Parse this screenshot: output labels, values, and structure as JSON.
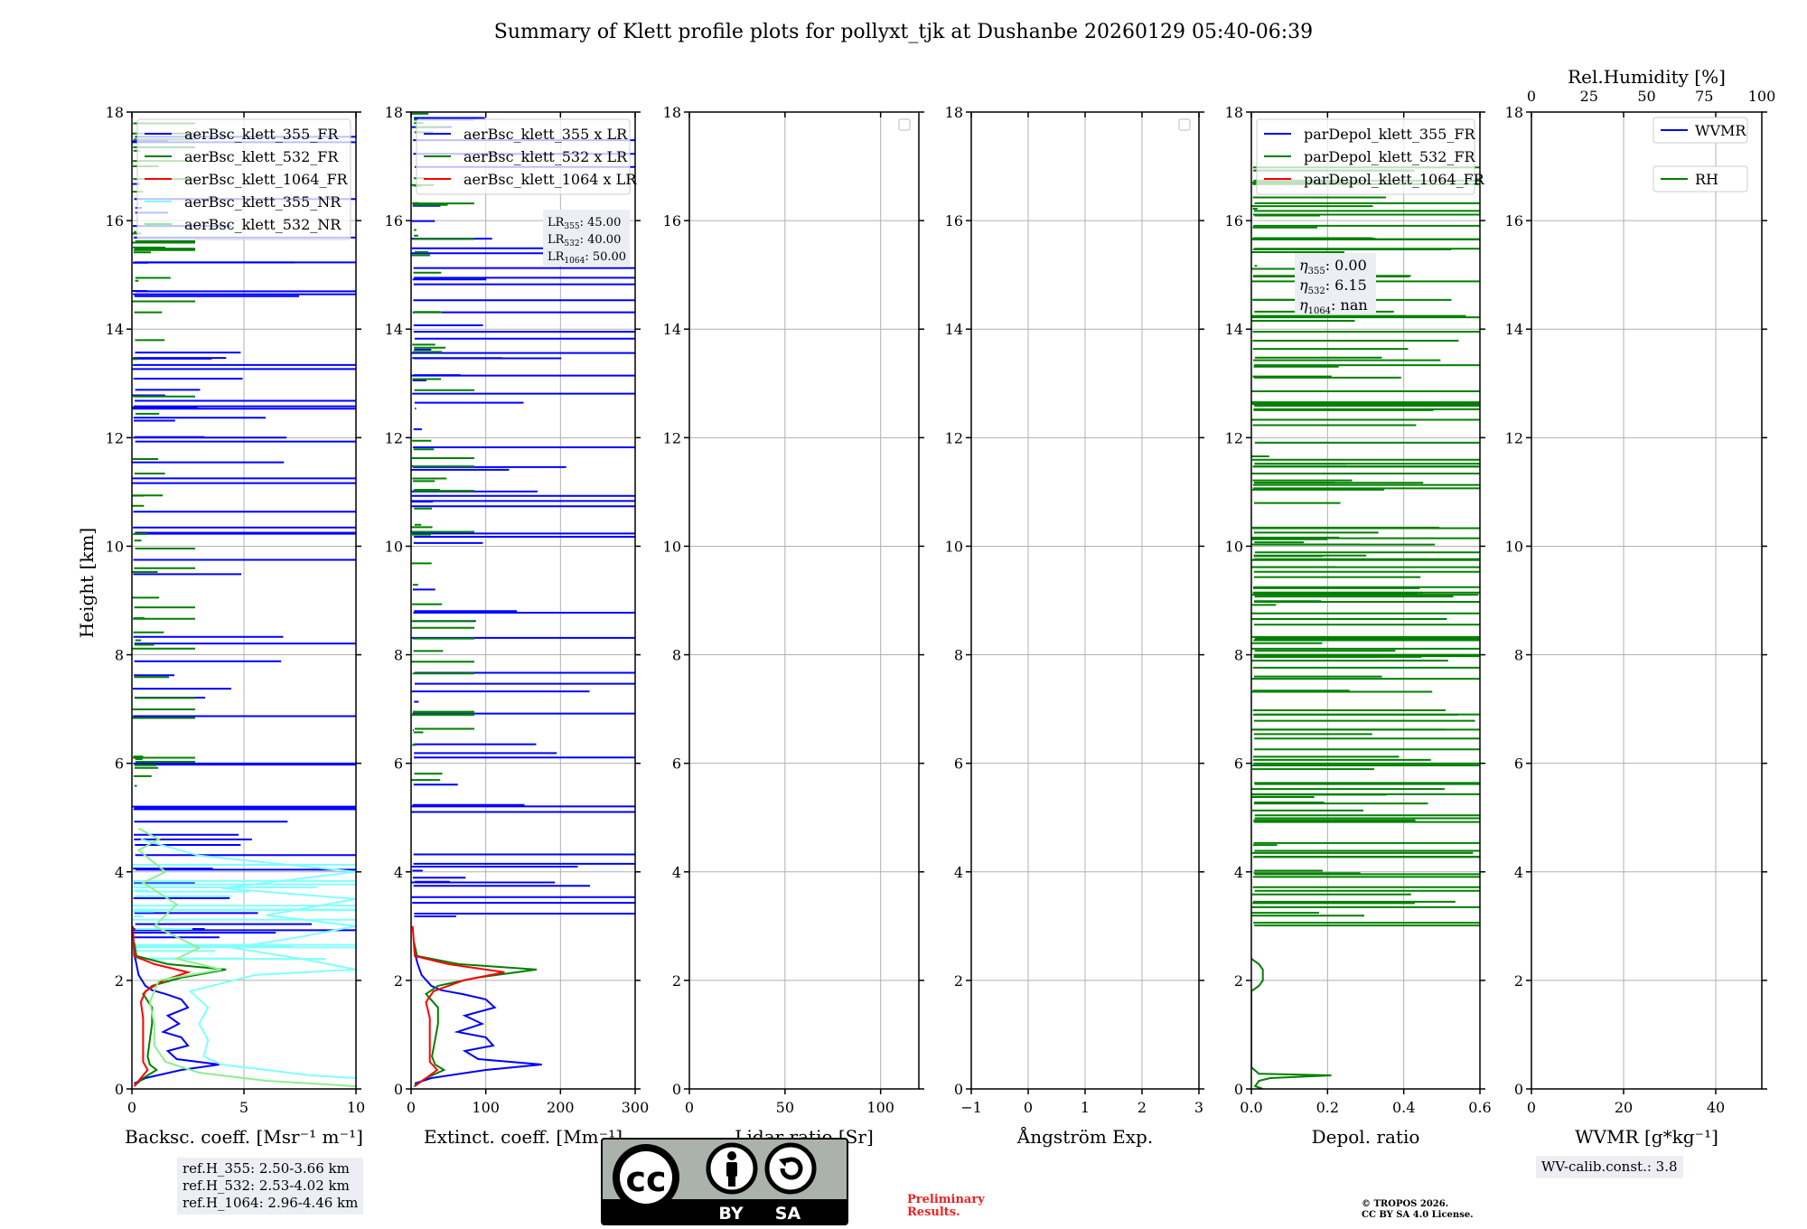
{
  "chart_data": {
    "title": "Summary of Klett profile plots for pollyxt_tjk at Dushanbe 20260129 05:40-06:39",
    "type": "line",
    "ylabel": "Height [km]",
    "ylim": [
      0,
      18
    ],
    "yticks": [
      0,
      2,
      4,
      6,
      8,
      10,
      12,
      14,
      16,
      18
    ],
    "panels": [
      {
        "key": "backscatter",
        "type": "line",
        "xlabel": "Backsc. coeff. [Msr⁻¹ m⁻¹]",
        "xlim": [
          0,
          10
        ],
        "xticks": [
          0,
          5,
          10
        ],
        "legend": [
          {
            "name": "aerBsc_klett_355_FR",
            "color": "#0000ff"
          },
          {
            "name": "aerBsc_klett_532_FR",
            "color": "#008000"
          },
          {
            "name": "aerBsc_klett_1064_FR",
            "color": "#ff0000"
          },
          {
            "name": "aerBsc_klett_355_NR",
            "color": "#80ffff"
          },
          {
            "name": "aerBsc_klett_532_NR",
            "color": "#90ee90"
          }
        ],
        "series": [
          {
            "name": "aerBsc_klett_355_FR",
            "color": "#0000ff",
            "points": [
              [
                0.1,
                0.1
              ],
              [
                0.6,
                0.2
              ],
              [
                2.2,
                0.35
              ],
              [
                3.9,
                0.45
              ],
              [
                2.0,
                0.55
              ],
              [
                1.6,
                0.7
              ],
              [
                2.5,
                0.8
              ],
              [
                2.2,
                0.95
              ],
              [
                1.4,
                1.05
              ],
              [
                2.1,
                1.2
              ],
              [
                1.6,
                1.35
              ],
              [
                2.5,
                1.5
              ],
              [
                2.2,
                1.65
              ],
              [
                1.5,
                1.75
              ],
              [
                0.9,
                1.82
              ],
              [
                0.6,
                1.9
              ],
              [
                0.3,
                2.1
              ],
              [
                0.2,
                2.3
              ],
              [
                0.1,
                2.5
              ]
            ]
          },
          {
            "name": "aerBsc_klett_532_FR",
            "color": "#008000",
            "points": [
              [
                0.1,
                0.05
              ],
              [
                0.5,
                0.2
              ],
              [
                1.1,
                0.35
              ],
              [
                0.8,
                0.45
              ],
              [
                0.7,
                0.6
              ],
              [
                0.8,
                0.9
              ],
              [
                0.9,
                1.2
              ],
              [
                0.9,
                1.5
              ],
              [
                0.5,
                1.75
              ],
              [
                0.9,
                1.9
              ],
              [
                2.2,
                2.05
              ],
              [
                4.2,
                2.2
              ],
              [
                1.6,
                2.3
              ],
              [
                0.2,
                2.45
              ],
              [
                0.1,
                2.7
              ]
            ]
          },
          {
            "name": "aerBsc_klett_1064_FR",
            "color": "#ff0000",
            "points": [
              [
                0.1,
                0.05
              ],
              [
                0.4,
                0.2
              ],
              [
                0.7,
                0.35
              ],
              [
                0.5,
                0.5
              ],
              [
                0.5,
                0.9
              ],
              [
                0.5,
                1.3
              ],
              [
                0.4,
                1.6
              ],
              [
                0.6,
                1.8
              ],
              [
                1.4,
                2.0
              ],
              [
                2.5,
                2.15
              ],
              [
                1.0,
                2.3
              ],
              [
                0.1,
                2.45
              ],
              [
                0.05,
                3.0
              ]
            ]
          },
          {
            "name": "aerBsc_klett_355_NR",
            "color": "#80ffff",
            "points": [
              [
                10,
                0.2
              ],
              [
                8.0,
                0.25
              ],
              [
                6.0,
                0.35
              ],
              [
                4.0,
                0.45
              ],
              [
                3.2,
                0.6
              ],
              [
                3.4,
                0.9
              ],
              [
                3.0,
                1.2
              ],
              [
                3.4,
                1.5
              ],
              [
                2.6,
                1.8
              ],
              [
                5.5,
                2.1
              ],
              [
                10,
                2.2
              ],
              [
                7.5,
                2.4
              ],
              [
                4.5,
                2.6
              ],
              [
                7.5,
                2.8
              ],
              [
                10,
                3.0
              ],
              [
                6.0,
                3.2
              ],
              [
                10,
                3.5
              ],
              [
                4.0,
                3.7
              ],
              [
                10,
                4.0
              ],
              [
                3.0,
                4.3
              ],
              [
                0.4,
                4.6
              ]
            ]
          },
          {
            "name": "aerBsc_klett_532_NR",
            "color": "#90ee90",
            "points": [
              [
                10,
                0.05
              ],
              [
                6.0,
                0.15
              ],
              [
                3.0,
                0.3
              ],
              [
                1.5,
                0.5
              ],
              [
                1.0,
                0.8
              ],
              [
                1.0,
                1.2
              ],
              [
                0.8,
                1.6
              ],
              [
                1.2,
                2.0
              ],
              [
                4.0,
                2.2
              ],
              [
                2.0,
                2.4
              ],
              [
                3.0,
                2.6
              ],
              [
                1.0,
                3.0
              ],
              [
                2.0,
                3.4
              ],
              [
                0.5,
                3.8
              ],
              [
                1.5,
                4.0
              ],
              [
                0.3,
                4.4
              ],
              [
                1.2,
                4.6
              ],
              [
                0.3,
                4.8
              ]
            ]
          }
        ],
        "info": [
          "ref.H_355: 2.50-3.66 km",
          "ref.H_532: 2.53-4.02 km",
          "ref.H_1064: 2.96-4.46 km"
        ]
      },
      {
        "key": "extinction",
        "type": "line",
        "xlabel": "Extinct. coeff. [Mm⁻¹]",
        "xlim": [
          0,
          300
        ],
        "xticks": [
          0,
          100,
          200,
          300
        ],
        "legend": [
          {
            "name": "aerBsc_klett_355 x LR",
            "color": "#0000ff"
          },
          {
            "name": "aerBsc_klett_532 x LR",
            "color": "#008000"
          },
          {
            "name": "aerBsc_klett_1064 x LR",
            "color": "#ff0000"
          }
        ],
        "lr": [
          {
            "sub": "355",
            "value": "45.00"
          },
          {
            "sub": "532",
            "value": "40.00"
          },
          {
            "sub": "1064",
            "value": "50.00"
          }
        ],
        "series": [
          {
            "name": "aerBsc_klett_355 x LR",
            "color": "#0000ff",
            "points": [
              [
                5,
                0.1
              ],
              [
                27,
                0.2
              ],
              [
                100,
                0.35
              ],
              [
                175,
                0.45
              ],
              [
                90,
                0.55
              ],
              [
                72,
                0.7
              ],
              [
                110,
                0.8
              ],
              [
                100,
                0.95
              ],
              [
                62,
                1.05
              ],
              [
                95,
                1.2
              ],
              [
                72,
                1.35
              ],
              [
                112,
                1.5
              ],
              [
                100,
                1.65
              ],
              [
                68,
                1.75
              ],
              [
                40,
                1.82
              ],
              [
                27,
                1.9
              ],
              [
                14,
                2.1
              ],
              [
                9,
                2.3
              ],
              [
                5,
                2.5
              ]
            ]
          },
          {
            "name": "aerBsc_klett_532 x LR",
            "color": "#008000",
            "points": [
              [
                4,
                0.05
              ],
              [
                20,
                0.2
              ],
              [
                44,
                0.35
              ],
              [
                32,
                0.45
              ],
              [
                28,
                0.6
              ],
              [
                32,
                0.9
              ],
              [
                36,
                1.2
              ],
              [
                36,
                1.5
              ],
              [
                20,
                1.75
              ],
              [
                36,
                1.9
              ],
              [
                88,
                2.05
              ],
              [
                168,
                2.2
              ],
              [
                64,
                2.3
              ],
              [
                8,
                2.45
              ],
              [
                4,
                2.7
              ]
            ]
          },
          {
            "name": "aerBsc_klett_1064 x LR",
            "color": "#ff0000",
            "points": [
              [
                5,
                0.05
              ],
              [
                20,
                0.2
              ],
              [
                35,
                0.35
              ],
              [
                25,
                0.5
              ],
              [
                25,
                0.9
              ],
              [
                25,
                1.3
              ],
              [
                20,
                1.6
              ],
              [
                30,
                1.8
              ],
              [
                70,
                2.0
              ],
              [
                125,
                2.15
              ],
              [
                50,
                2.3
              ],
              [
                5,
                2.45
              ],
              [
                2,
                3.0
              ]
            ]
          }
        ]
      },
      {
        "key": "lidar-ratio",
        "type": "line",
        "xlabel": "Lidar ratio [Sr]",
        "xlim": [
          0,
          120
        ],
        "xticks": [
          0,
          50,
          100
        ],
        "legend": [],
        "series": []
      },
      {
        "key": "angstrom",
        "type": "line",
        "xlabel": "Ångström Exp.",
        "xlim": [
          -1,
          3
        ],
        "xticks": [
          -1,
          0,
          1,
          2,
          3
        ],
        "legend": [],
        "series": []
      },
      {
        "key": "depol",
        "type": "line",
        "xlabel": "Depol. ratio",
        "xlim": [
          0,
          0.6
        ],
        "xticks": [
          0.0,
          0.2,
          0.4,
          0.6
        ],
        "legend": [
          {
            "name": "parDepol_klett_355_FR",
            "color": "#0000ff"
          },
          {
            "name": "parDepol_klett_532_FR",
            "color": "#008000"
          },
          {
            "name": "parDepol_klett_1064_FR",
            "color": "#ff0000"
          }
        ],
        "eta": [
          {
            "sub": "355",
            "value": "0.00"
          },
          {
            "sub": "532",
            "value": "6.15"
          },
          {
            "sub": "1064",
            "value": "nan"
          }
        ],
        "series": [
          {
            "name": "parDepol_klett_532_FR",
            "color": "#008000",
            "points": [
              [
                0.03,
                0.0
              ],
              [
                0.01,
                0.05
              ],
              [
                0.02,
                0.15
              ],
              [
                0.05,
                0.2
              ],
              [
                0.21,
                0.25
              ],
              [
                0.02,
                0.28
              ],
              [
                0.0,
                0.4
              ],
              [
                0.0,
                1.8
              ],
              [
                0.02,
                1.9
              ],
              [
                0.03,
                2.0
              ],
              [
                0.03,
                2.2
              ],
              [
                0.02,
                2.3
              ],
              [
                0.0,
                2.4
              ]
            ]
          }
        ]
      },
      {
        "key": "wv",
        "type": "line",
        "xlabel": "WVMR [$g*kg^{-1}$]",
        "xlim": [
          0,
          50
        ],
        "xticks": [
          0,
          20,
          40
        ],
        "x2label": "Rel.Humidity [%]",
        "x2lim": [
          0,
          100
        ],
        "x2ticks": [
          0,
          25,
          50,
          75,
          100
        ],
        "legend": [
          {
            "name": "WVMR",
            "color": "#0000ff"
          },
          {
            "name": "RH",
            "color": "#008000"
          }
        ],
        "series": [],
        "info": [
          "WV-calib.const.: 3.8"
        ]
      }
    ]
  },
  "license": {
    "badge_by": "BY",
    "badge_sa": "SA",
    "badge_cc": "cc",
    "preliminary": [
      "Preliminary",
      "Results."
    ],
    "copyright": [
      "© TROPOS 2026.",
      "CC BY SA 4.0 License."
    ]
  },
  "colors": {
    "fr355": "#0000ff",
    "fr532": "#008000",
    "fr1064": "#ff0000",
    "nr355": "#80ffff",
    "nr532": "#90ee90",
    "grid": "#b0b0b0",
    "legend_bg": "#ffffff"
  }
}
